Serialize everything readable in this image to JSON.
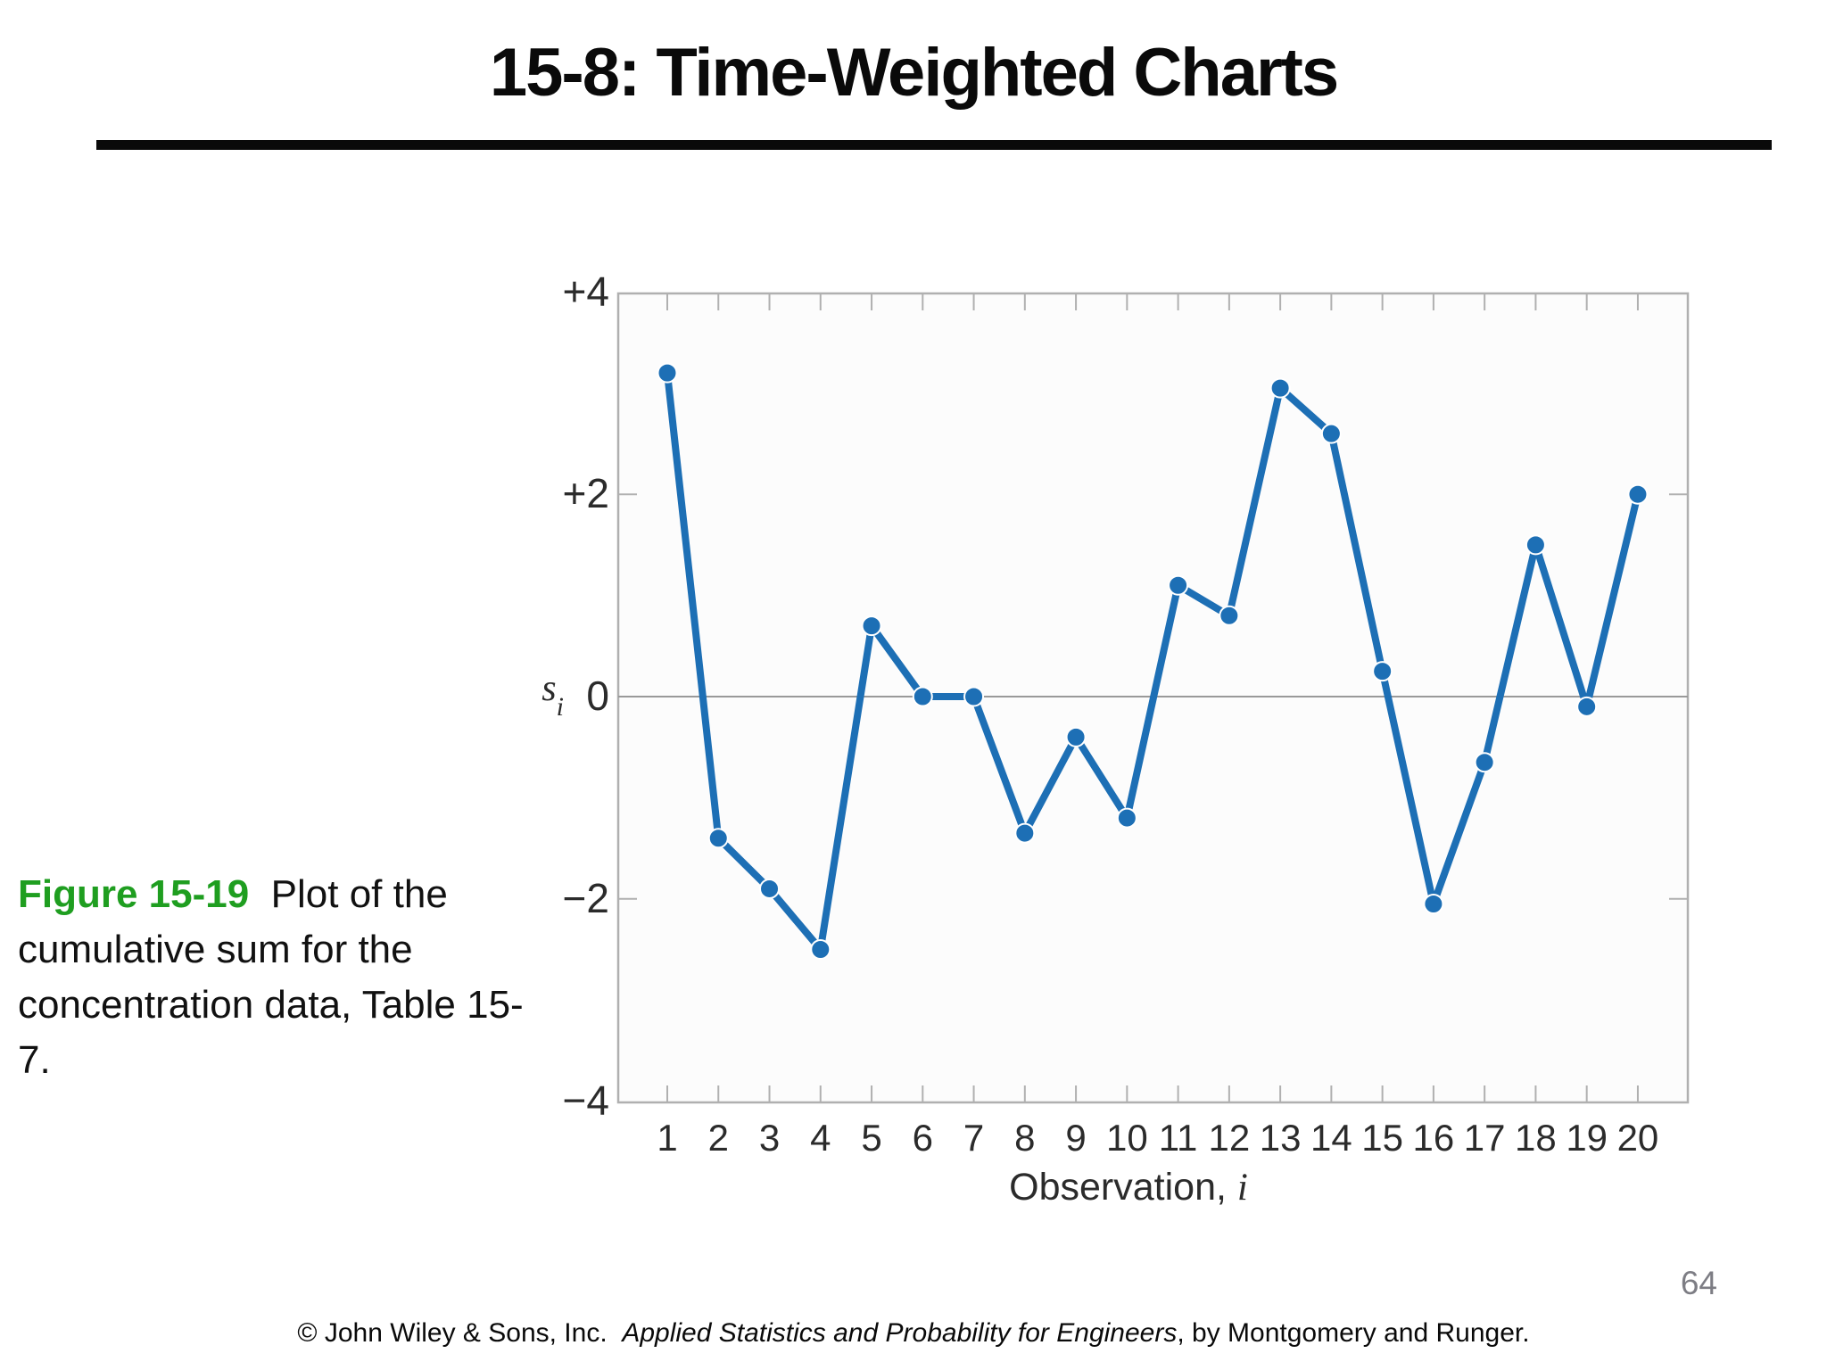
{
  "slide": {
    "title": "15-8: Time-Weighted Charts",
    "page_number": "64",
    "caption": {
      "label": "Figure 15-19",
      "label_color": "#1f9e20",
      "text": "  Plot of the cumulative sum for the concentration data, Table 15-7."
    },
    "footer": {
      "prefix": "© John Wiley & Sons, Inc.  ",
      "book_title": "Applied Statistics and Probability for Engineers",
      "suffix": ", by Montgomery and Runger."
    }
  },
  "chart_data": {
    "type": "line",
    "title": "",
    "xlabel_prefix": "Observation, ",
    "xlabel_italic": "i",
    "ylabel_base": "s",
    "ylabel_sub": "i",
    "x": [
      1,
      2,
      3,
      4,
      5,
      6,
      7,
      8,
      9,
      10,
      11,
      12,
      13,
      14,
      15,
      16,
      17,
      18,
      19,
      20
    ],
    "values": [
      3.2,
      -1.4,
      -1.9,
      -2.5,
      0.7,
      0.0,
      0.0,
      -1.35,
      -0.4,
      -1.2,
      1.1,
      0.8,
      3.05,
      2.6,
      0.25,
      -2.05,
      -0.65,
      1.5,
      -0.1,
      2.0
    ],
    "series_name": "cumulative sum s_i",
    "ylim": [
      -4,
      4
    ],
    "xlim": [
      1,
      20
    ],
    "ytick_values": [
      4,
      2,
      0,
      -2,
      -4
    ],
    "ytick_labels": [
      "+4",
      "+2",
      "0",
      "−2",
      "−4"
    ],
    "xtick_labels": [
      "1",
      "2",
      "3",
      "4",
      "5",
      "6",
      "7",
      "8",
      "9",
      "10",
      "11",
      "12",
      "13",
      "14",
      "15",
      "16",
      "17",
      "18",
      "19",
      "20"
    ],
    "grid": "horizontal zero line only",
    "legend": "none",
    "line_color": "#1d6fb5",
    "marker": "filled circle",
    "axis_color": "#b0b0b0",
    "zero_line_color": "#999999",
    "tick_label_color": "#2b2b2b",
    "plot_bg_color": "#fcfcfc"
  }
}
